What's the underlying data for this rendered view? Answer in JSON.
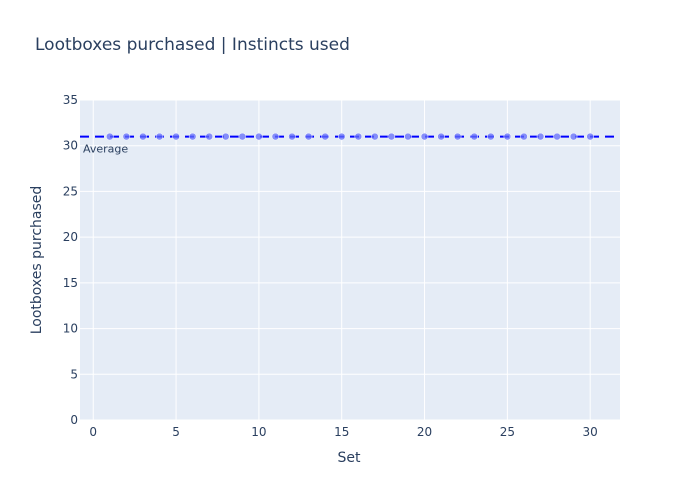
{
  "chart_data": {
    "type": "scatter",
    "title": "Lootboxes purchased | Instincts used",
    "xlabel": "Set",
    "ylabel": "Lootboxes purchased",
    "xlim": [
      -0.8,
      31.8
    ],
    "ylim": [
      0,
      35
    ],
    "x_ticks": [
      0,
      5,
      10,
      15,
      20,
      25,
      30
    ],
    "y_ticks": [
      0,
      5,
      10,
      15,
      20,
      25,
      30,
      35
    ],
    "grid": true,
    "series": [
      {
        "type": "scatter",
        "color": "#636efa",
        "x": [
          1,
          2,
          3,
          4,
          5,
          6,
          7,
          8,
          9,
          10,
          11,
          12,
          13,
          14,
          15,
          16,
          17,
          18,
          19,
          20,
          21,
          22,
          23,
          24,
          25,
          26,
          27,
          28,
          29,
          30
        ],
        "y": [
          31,
          31,
          31,
          31,
          31,
          31,
          31,
          31,
          31,
          31,
          31,
          31,
          31,
          31,
          31,
          31,
          31,
          31,
          31,
          31,
          31,
          31,
          31,
          31,
          31,
          31,
          31,
          31,
          31,
          31
        ]
      },
      {
        "type": "line",
        "style": "dashed",
        "color": "#0000ff",
        "x": [
          -0.8,
          31.8
        ],
        "y": [
          31,
          31
        ]
      }
    ],
    "annotations": [
      {
        "text": "Average",
        "x": -0.8,
        "y": 31
      }
    ]
  }
}
